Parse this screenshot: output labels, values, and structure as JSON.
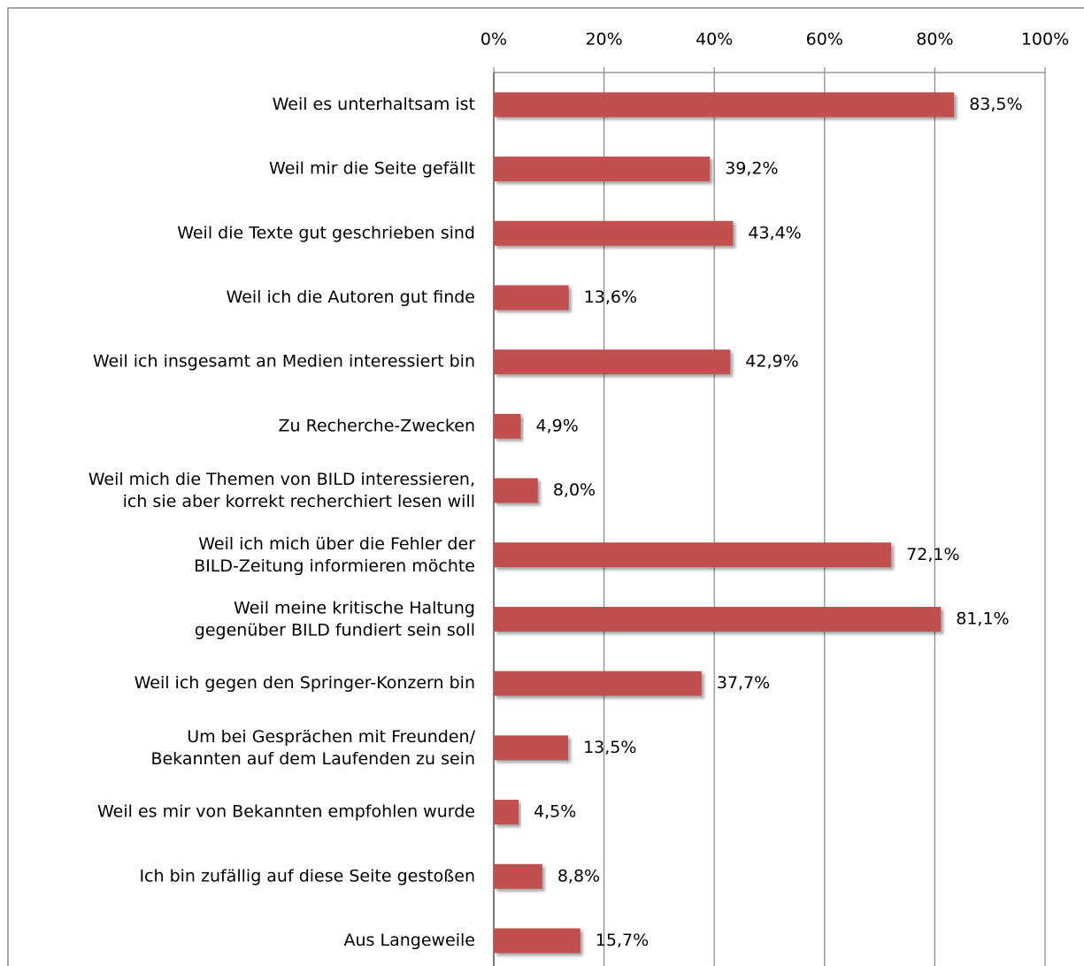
{
  "chart_data": {
    "type": "bar",
    "orientation": "horizontal",
    "categories": [
      "Weil es unterhaltsam ist",
      "Weil mir die Seite gefällt",
      "Weil die Texte gut geschrieben sind",
      "Weil ich die Autoren gut finde",
      "Weil ich insgesamt an Medien interessiert bin",
      "Zu Recherche-Zwecken",
      "Weil mich die Themen von BILD interessieren,\nich sie aber korrekt recherchiert lesen will",
      "Weil ich mich über die Fehler der\nBILD-Zeitung informieren möchte",
      "Weil meine kritische Haltung\ngegenüber BILD fundiert sein soll",
      "Weil ich gegen den Springer-Konzern bin",
      "Um bei Gesprächen mit Freunden/\nBekannten auf dem Laufenden zu sein",
      "Weil es mir von Bekannten empfohlen wurde",
      "Ich bin zufällig auf diese Seite gestoßen",
      "Aus Langeweile"
    ],
    "values": [
      83.5,
      39.2,
      43.4,
      13.6,
      42.9,
      4.9,
      8.0,
      72.1,
      81.1,
      37.7,
      13.5,
      4.5,
      8.8,
      15.7
    ],
    "value_labels": [
      "83,5%",
      "39,2%",
      "43,4%",
      "13,6%",
      "42,9%",
      "4,9%",
      "8,0%",
      "72,1%",
      "81,1%",
      "37,7%",
      "13,5%",
      "4,5%",
      "8,8%",
      "15,7%"
    ],
    "color": "#c0504d",
    "xlim": [
      0,
      100
    ],
    "xticks": [
      {
        "value": 0,
        "label": "0%"
      },
      {
        "value": 20,
        "label": "20%"
      },
      {
        "value": 40,
        "label": "40%"
      },
      {
        "value": 60,
        "label": "60%"
      },
      {
        "value": 80,
        "label": "80%"
      },
      {
        "value": 100,
        "label": "100%"
      }
    ],
    "grid": true
  }
}
